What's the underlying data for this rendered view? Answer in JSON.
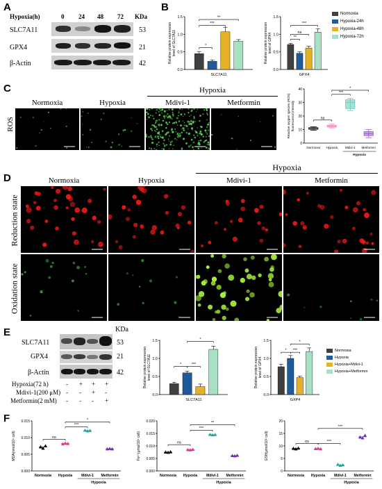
{
  "panels": {
    "A": {
      "label": "A",
      "header": "Hypoxia(h)",
      "timepoints": [
        "0",
        "24",
        "48",
        "72"
      ],
      "kda_header": "KDa",
      "rows": [
        {
          "name": "SLC7A11",
          "kda": "53"
        },
        {
          "name": "GPX4",
          "kda": "21"
        },
        {
          "name": "β-Actin",
          "kda": "42"
        }
      ]
    },
    "B": {
      "label": "B",
      "legend": [
        "Normoxia",
        "Hypoxia-24h",
        "Hypoxia-48h",
        "Hypoxia-72h"
      ]
    },
    "C": {
      "label": "C",
      "row_label": "ROS",
      "group_header": "Hypoxia",
      "images": [
        "Normoxia",
        "Hypoxia",
        "Mdivi-1",
        "Metformin"
      ]
    },
    "D": {
      "label": "D",
      "group_header": "Hypoxia",
      "columns": [
        "Normoxia",
        "Hypoxia",
        "Mdivi-1",
        "Metformin"
      ],
      "rows": [
        "Reduction state",
        "Oxidation state"
      ]
    },
    "E": {
      "label": "E",
      "kda_header": "KDa",
      "rows": [
        {
          "name": "SLC7A11",
          "kda": "53"
        },
        {
          "name": "GPX4",
          "kda": "21"
        },
        {
          "name": "β-Actin",
          "kda": "42"
        }
      ],
      "treatments": [
        {
          "name": "Hypoxia(72 h)",
          "marks": [
            "-",
            "+",
            "+",
            "+"
          ]
        },
        {
          "name": "Mdivi-1(200 μM)",
          "marks": [
            "-",
            "-",
            "+",
            "-"
          ]
        },
        {
          "name": "Metformin(2 mM)",
          "marks": [
            "-",
            "-",
            "-",
            "+"
          ]
        }
      ],
      "legend": [
        "Normoxia",
        "Hypoxia",
        "Hypoxia+Mdivi-1",
        "Hypoxia+Metformin"
      ]
    },
    "F": {
      "label": "F"
    }
  },
  "colors": {
    "c0": "#404040",
    "c1": "#1f5b9a",
    "c2": "#e5b12a",
    "c3": "#a8e0c4",
    "pink": "#e0358f",
    "teal": "#1fa89a",
    "purple": "#6b2fb5",
    "box_pink": "#f08cc0",
    "box_teal": "#5cc9b8",
    "box_purple": "#9b59d0"
  },
  "chart_data": [
    {
      "id": "B-left",
      "type": "bar",
      "categories": [
        "SLC7A11"
      ],
      "series": [
        {
          "name": "Normoxia",
          "values": [
            0.45
          ],
          "err": [
            0.06
          ]
        },
        {
          "name": "Hypoxia-24h",
          "values": [
            0.23
          ],
          "err": [
            0.04
          ]
        },
        {
          "name": "Hypoxia-48h",
          "values": [
            1.07
          ],
          "err": [
            0.13
          ]
        },
        {
          "name": "Hypoxia-72h",
          "values": [
            0.8
          ],
          "err": [
            0.05
          ]
        }
      ],
      "ylabel": "Relative protein expression level of SLC7A11",
      "xlabel": "SLC7A11",
      "ylim": [
        0,
        1.5
      ],
      "yticks": [
        "0.0",
        "0.5",
        "1.0",
        "1.5"
      ],
      "sig": [
        {
          "from": 0,
          "to": 1,
          "label": "*",
          "level": 0.62
        },
        {
          "from": 0,
          "to": 2,
          "label": "***",
          "level": 1.25
        },
        {
          "from": 0,
          "to": 3,
          "label": "**",
          "level": 1.42
        }
      ]
    },
    {
      "id": "B-right",
      "type": "bar",
      "categories": [
        "GPX4"
      ],
      "series": [
        {
          "name": "Normoxia",
          "values": [
            0.71
          ],
          "err": [
            0.03
          ]
        },
        {
          "name": "Hypoxia-24h",
          "values": [
            0.46
          ],
          "err": [
            0.04
          ]
        },
        {
          "name": "Hypoxia-48h",
          "values": [
            0.61
          ],
          "err": [
            0.05
          ]
        },
        {
          "name": "Hypoxia-72h",
          "values": [
            1.06
          ],
          "err": [
            0.1
          ]
        }
      ],
      "ylabel": "Relative protein expression level of GPX4",
      "xlabel": "GPX4",
      "ylim": [
        0,
        1.5
      ],
      "yticks": [
        "0.0",
        "0.5",
        "1.0",
        "1.5"
      ],
      "sig": [
        {
          "from": 0,
          "to": 1,
          "label": "**",
          "level": 0.86
        },
        {
          "from": 0,
          "to": 2,
          "label": "ns",
          "level": 1.0
        },
        {
          "from": 0,
          "to": 3,
          "label": "***",
          "level": 1.25
        }
      ]
    },
    {
      "id": "C-box",
      "type": "box",
      "categories": [
        "Normoxia",
        "Hypoxia",
        "Mdivi-1",
        "Metformin"
      ],
      "boxes": [
        {
          "min": 9.5,
          "q1": 10.2,
          "med": 10.8,
          "q3": 11.4,
          "max": 12.0
        },
        {
          "min": 11.2,
          "q1": 11.8,
          "med": 12.5,
          "q3": 13.2,
          "max": 14.0
        },
        {
          "min": 24.0,
          "q1": 25.5,
          "med": 30.0,
          "q3": 32.0,
          "max": 33.0
        },
        {
          "min": 4.0,
          "q1": 5.5,
          "med": 7.0,
          "q3": 8.5,
          "max": 10.0
        }
      ],
      "ylabel": "Reactive oxygen species (ROS) fluorescence intensity",
      "ylim": [
        0,
        40
      ],
      "yticks": [
        "0",
        "10",
        "20",
        "30",
        "40"
      ],
      "group_label": "Hypoxia",
      "sig": [
        {
          "from": 0,
          "to": 1,
          "label": "ns",
          "level": 17
        },
        {
          "from": 1,
          "to": 2,
          "label": "***",
          "level": 36
        },
        {
          "from": 1,
          "to": 3,
          "label": "*",
          "level": 39
        }
      ]
    },
    {
      "id": "E-left",
      "type": "bar",
      "categories": [
        "SLC7A11"
      ],
      "series": [
        {
          "name": "Normoxia",
          "values": [
            0.3
          ],
          "err": [
            0.04
          ]
        },
        {
          "name": "Hypoxia",
          "values": [
            0.6
          ],
          "err": [
            0.05
          ]
        },
        {
          "name": "Hypoxia+Mdivi-1",
          "values": [
            0.22
          ],
          "err": [
            0.07
          ]
        },
        {
          "name": "Hypoxia+Metformin",
          "values": [
            1.25
          ],
          "err": [
            0.09
          ]
        }
      ],
      "ylabel": "Relative protein expression level of SCL7A11",
      "xlabel": "SLC7A11",
      "ylim": [
        0,
        1.5
      ],
      "yticks": [
        "0.0",
        "0.5",
        "1.0",
        "1.5"
      ],
      "sig": [
        {
          "from": 0,
          "to": 1,
          "label": "*",
          "level": 0.78
        },
        {
          "from": 1,
          "to": 2,
          "label": "***",
          "level": 0.78
        },
        {
          "from": 1,
          "to": 3,
          "label": "*",
          "level": 1.47
        }
      ]
    },
    {
      "id": "E-right",
      "type": "bar",
      "categories": [
        "GXP4"
      ],
      "series": [
        {
          "name": "Normoxia",
          "values": [
            0.77
          ],
          "err": [
            0.07
          ]
        },
        {
          "name": "Hypoxia",
          "values": [
            1.0
          ],
          "err": [
            0.08
          ]
        },
        {
          "name": "Hypoxia+Mdivi-1",
          "values": [
            0.47
          ],
          "err": [
            0.04
          ]
        },
        {
          "name": "Hypoxia+Metformin",
          "values": [
            1.19
          ],
          "err": [
            0.1
          ]
        }
      ],
      "ylabel": "Relative protein expression level of GPX4",
      "xlabel": "GXP4",
      "ylim": [
        0,
        1.5
      ],
      "yticks": [
        "0.0",
        "0.5",
        "1.0",
        "1.5"
      ],
      "sig": [
        {
          "from": 0,
          "to": 1,
          "label": "*",
          "level": 1.17
        },
        {
          "from": 1,
          "to": 2,
          "label": "***",
          "level": 1.17
        },
        {
          "from": 1,
          "to": 3,
          "label": "*",
          "level": 1.4
        }
      ]
    },
    {
      "id": "F-MDA",
      "type": "scatter",
      "categories": [
        "Normoxia",
        "Hypoxia",
        "Mdivi-1",
        "Metformin"
      ],
      "points": [
        [
          0.0072,
          0.0068,
          0.0075
        ],
        [
          0.0081,
          0.0083,
          0.0082
        ],
        [
          0.0122,
          0.012,
          0.0121
        ],
        [
          0.0066,
          0.0067,
          0.0066
        ]
      ],
      "ylabel": "MDA(nmol/10⁴ cell)",
      "ylim": [
        0,
        0.015
      ],
      "yticks": [
        "0.000",
        "0.005",
        "0.010",
        "0.015"
      ],
      "group_label": "Hypoxia",
      "sig": [
        {
          "from": 0,
          "to": 1,
          "label": "ns",
          "level": 0.0095
        },
        {
          "from": 1,
          "to": 2,
          "label": "***",
          "level": 0.0132
        },
        {
          "from": 1,
          "to": 3,
          "label": "*",
          "level": 0.0147
        }
      ]
    },
    {
      "id": "F-Fe",
      "type": "scatter",
      "categories": [
        "Normoxia",
        "Hypoxia",
        "Mdivi-1",
        "Metformin"
      ],
      "points": [
        [
          0.0075,
          0.0074,
          0.0076
        ],
        [
          0.0085,
          0.0084,
          0.0086
        ],
        [
          0.0146,
          0.0144,
          0.0145
        ],
        [
          0.0061,
          0.006,
          0.0062
        ]
      ],
      "ylabel": "Fe²⁺(μmol/10⁴ cell)",
      "ylim": [
        0,
        0.02
      ],
      "yticks": [
        "0.000",
        "0.005",
        "0.010",
        "0.015",
        "0.020"
      ],
      "group_label": "Hypoxia",
      "sig": [
        {
          "from": 0,
          "to": 1,
          "label": "ns",
          "level": 0.0105
        },
        {
          "from": 1,
          "to": 2,
          "label": "***",
          "level": 0.0163
        },
        {
          "from": 1,
          "to": 3,
          "label": "**",
          "level": 0.0185
        }
      ]
    },
    {
      "id": "F-GSH",
      "type": "scatter",
      "categories": [
        "Normoxia",
        "Hypoxia",
        "Mdivi-1",
        "Metformin"
      ],
      "points": [
        [
          9.0,
          8.8,
          9.1
        ],
        [
          8.9,
          9.0,
          8.8
        ],
        [
          2.6,
          2.2,
          2.4
        ],
        [
          13.5,
          13.2,
          14.2
        ]
      ],
      "ylabel": "GSH(μmol/10⁶ cell)",
      "ylim": [
        0,
        20
      ],
      "yticks": [
        "0",
        "5",
        "10",
        "15",
        "20"
      ],
      "group_label": "Hypoxia",
      "sig": [
        {
          "from": 0,
          "to": 1,
          "label": "ns",
          "level": 11
        },
        {
          "from": 1,
          "to": 2,
          "label": "***",
          "level": 11
        },
        {
          "from": 1,
          "to": 3,
          "label": "***",
          "level": 17
        }
      ]
    }
  ]
}
